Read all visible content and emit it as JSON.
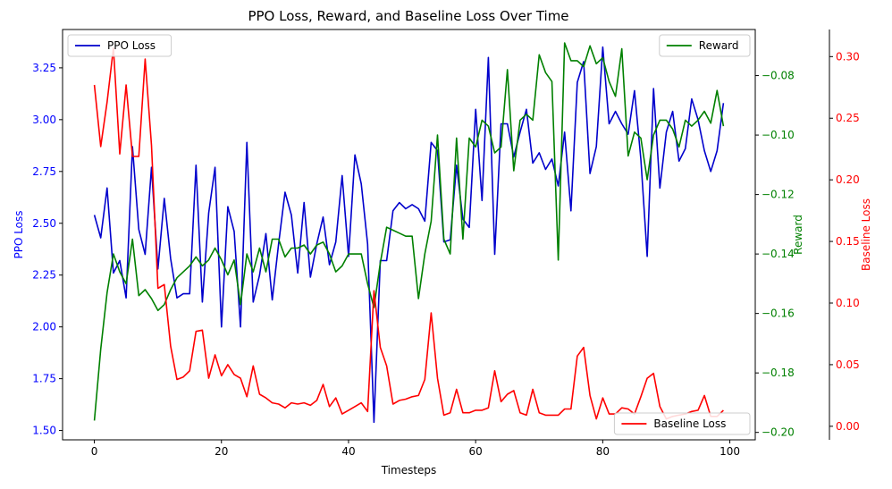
{
  "chart_data": {
    "type": "line",
    "title": "PPO Loss, Reward, and Baseline Loss Over Time",
    "xlabel": "Timesteps",
    "xlim": [
      -5,
      104
    ],
    "x_ticks": [
      0,
      20,
      40,
      60,
      80,
      100
    ],
    "axes": [
      {
        "id": "ppo",
        "label": "PPO Loss",
        "side": "left",
        "color": "#0000ff",
        "ylim": [
          1.455,
          3.435
        ],
        "ticks": [
          1.5,
          1.75,
          2.0,
          2.25,
          2.5,
          2.75,
          3.0,
          3.25
        ],
        "tick_decimals": 2
      },
      {
        "id": "reward",
        "label": "Reward",
        "side": "right",
        "color": "#008000",
        "ylim": [
          -0.2025,
          -0.0645
        ],
        "ticks": [
          -0.2,
          -0.18,
          -0.16,
          -0.14,
          -0.12,
          -0.1,
          -0.08
        ],
        "tick_decimals": 2
      },
      {
        "id": "baseline",
        "label": "Baseline Loss",
        "side": "right",
        "color": "#ff0000",
        "ylim": [
          -0.011,
          0.322
        ],
        "ticks": [
          0.0,
          0.05,
          0.1,
          0.15,
          0.2,
          0.25,
          0.3
        ],
        "tick_decimals": 2
      }
    ],
    "series": [
      {
        "name": "PPO Loss",
        "axis": "ppo",
        "color": "#0000cc",
        "legend": "top-left",
        "x_start": 0,
        "values": [
          2.54,
          2.43,
          2.67,
          2.26,
          2.32,
          2.14,
          2.87,
          2.47,
          2.35,
          2.77,
          2.28,
          2.62,
          2.33,
          2.14,
          2.16,
          2.16,
          2.78,
          2.12,
          2.55,
          2.77,
          2.0,
          2.58,
          2.46,
          2.0,
          2.89,
          2.12,
          2.25,
          2.45,
          2.13,
          2.4,
          2.65,
          2.54,
          2.26,
          2.6,
          2.24,
          2.4,
          2.53,
          2.3,
          2.41,
          2.73,
          2.34,
          2.83,
          2.69,
          2.4,
          1.54,
          2.32,
          2.32,
          2.56,
          2.6,
          2.57,
          2.59,
          2.57,
          2.51,
          2.89,
          2.85,
          2.41,
          2.42,
          2.78,
          2.52,
          2.48,
          3.05,
          2.61,
          3.3,
          2.35,
          2.98,
          2.98,
          2.82,
          2.94,
          3.05,
          2.79,
          2.84,
          2.76,
          2.81,
          2.68,
          2.94,
          2.56,
          3.18,
          3.28,
          2.74,
          2.87,
          3.35,
          2.98,
          3.04,
          2.98,
          2.93,
          3.14,
          2.81,
          2.34,
          3.15,
          2.67,
          2.94,
          3.04,
          2.8,
          2.86,
          3.1,
          3.0,
          2.85,
          2.75,
          2.85,
          3.08
        ]
      },
      {
        "name": "Reward",
        "axis": "reward",
        "color": "#008000",
        "legend": "top-right",
        "x_start": 0,
        "values": [
          -0.196,
          -0.172,
          -0.153,
          -0.14,
          -0.146,
          -0.15,
          -0.135,
          -0.154,
          -0.152,
          -0.155,
          -0.159,
          -0.157,
          -0.152,
          -0.148,
          -0.146,
          -0.144,
          -0.141,
          -0.144,
          -0.142,
          -0.138,
          -0.142,
          -0.147,
          -0.142,
          -0.157,
          -0.14,
          -0.146,
          -0.138,
          -0.146,
          -0.135,
          -0.135,
          -0.141,
          -0.138,
          -0.138,
          -0.137,
          -0.14,
          -0.137,
          -0.136,
          -0.14,
          -0.146,
          -0.144,
          -0.14,
          -0.14,
          -0.14,
          -0.15,
          -0.158,
          -0.143,
          -0.131,
          -0.132,
          -0.133,
          -0.134,
          -0.134,
          -0.155,
          -0.14,
          -0.129,
          -0.1,
          -0.135,
          -0.14,
          -0.101,
          -0.135,
          -0.101,
          -0.104,
          -0.095,
          -0.097,
          -0.106,
          -0.104,
          -0.078,
          -0.112,
          -0.095,
          -0.093,
          -0.095,
          -0.073,
          -0.079,
          -0.082,
          -0.142,
          -0.069,
          -0.075,
          -0.075,
          -0.077,
          -0.07,
          -0.076,
          -0.074,
          -0.082,
          -0.087,
          -0.071,
          -0.107,
          -0.099,
          -0.101,
          -0.115,
          -0.1,
          -0.095,
          -0.095,
          -0.098,
          -0.104,
          -0.095,
          -0.097,
          -0.095,
          -0.092,
          -0.096,
          -0.085,
          -0.097
        ]
      },
      {
        "name": "Baseline Loss",
        "axis": "baseline",
        "color": "#ff0000",
        "legend": "bottom-right",
        "x_start": 0,
        "values": [
          0.277,
          0.227,
          0.263,
          0.307,
          0.221,
          0.277,
          0.219,
          0.219,
          0.298,
          0.228,
          0.112,
          0.115,
          0.065,
          0.038,
          0.04,
          0.045,
          0.077,
          0.078,
          0.039,
          0.058,
          0.041,
          0.05,
          0.042,
          0.039,
          0.024,
          0.049,
          0.026,
          0.023,
          0.019,
          0.018,
          0.015,
          0.019,
          0.018,
          0.019,
          0.017,
          0.021,
          0.034,
          0.016,
          0.023,
          0.01,
          0.013,
          0.016,
          0.019,
          0.012,
          0.11,
          0.064,
          0.049,
          0.018,
          0.021,
          0.022,
          0.024,
          0.025,
          0.038,
          0.092,
          0.039,
          0.009,
          0.011,
          0.03,
          0.011,
          0.011,
          0.013,
          0.013,
          0.015,
          0.045,
          0.02,
          0.026,
          0.029,
          0.011,
          0.009,
          0.03,
          0.011,
          0.009,
          0.009,
          0.009,
          0.014,
          0.014,
          0.057,
          0.064,
          0.025,
          0.006,
          0.023,
          0.01,
          0.01,
          0.015,
          0.014,
          0.01,
          0.024,
          0.039,
          0.043,
          0.016,
          0.006,
          0.008,
          0.009,
          0.01,
          0.012,
          0.013,
          0.025,
          0.008,
          0.008,
          0.013
        ]
      }
    ]
  }
}
